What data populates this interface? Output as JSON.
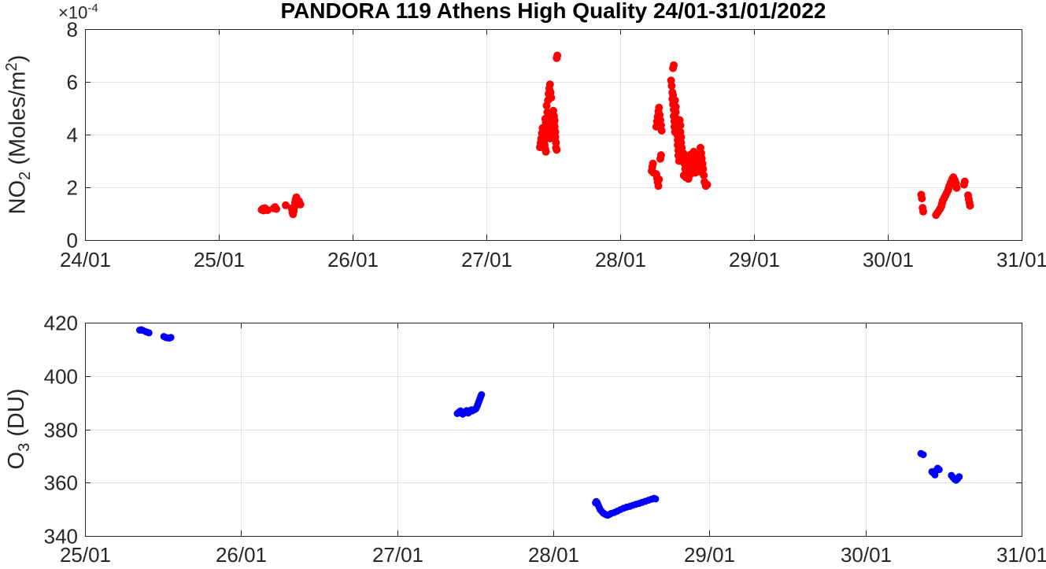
{
  "figure": {
    "title": "PANDORA 119 Athens High Quality 24/01-31/01/2022",
    "background_color": "#ffffff",
    "axis_color": "#262626",
    "grid_color": "#e0e0e0"
  },
  "chart_data": [
    {
      "type": "scatter",
      "id": "no2",
      "ylabel": {
        "base": "NO",
        "sub": "2",
        "mid": " (Moles/m",
        "sup": "2",
        "end": ")"
      },
      "y_exponent": {
        "base": "×10",
        "sup": "-4"
      },
      "marker_color": "#ff0000",
      "x_tick_labels": [
        "24/01",
        "25/01",
        "26/01",
        "27/01",
        "28/01",
        "29/01",
        "30/01",
        "31/01"
      ],
      "x_range_days": [
        0,
        7
      ],
      "y_tick_labels": [
        "0",
        "2",
        "4",
        "6",
        "8"
      ],
      "y_ticks": [
        0,
        2,
        4,
        6,
        8
      ],
      "ylim": [
        0,
        8
      ],
      "grid": true,
      "points": [
        [
          1.32,
          1.15
        ],
        [
          1.33,
          1.19
        ],
        [
          1.335,
          1.12
        ],
        [
          1.345,
          1.21
        ],
        [
          1.355,
          1.16
        ],
        [
          1.365,
          1.13
        ],
        [
          1.41,
          1.2
        ],
        [
          1.42,
          1.25
        ],
        [
          1.43,
          1.18
        ],
        [
          1.5,
          1.32
        ],
        [
          1.545,
          1.2
        ],
        [
          1.55,
          1.05
        ],
        [
          1.555,
          0.98
        ],
        [
          1.56,
          1.1
        ],
        [
          1.565,
          1.25
        ],
        [
          1.57,
          1.42
        ],
        [
          1.575,
          1.55
        ],
        [
          1.58,
          1.62
        ],
        [
          1.585,
          1.5
        ],
        [
          1.59,
          1.4
        ],
        [
          1.6,
          1.47
        ],
        [
          1.61,
          1.35
        ],
        [
          3.4,
          3.52
        ],
        [
          3.405,
          3.68
        ],
        [
          3.41,
          3.85
        ],
        [
          3.415,
          4.05
        ],
        [
          3.42,
          4.25
        ],
        [
          3.425,
          3.95
        ],
        [
          3.43,
          3.75
        ],
        [
          3.435,
          3.6
        ],
        [
          3.44,
          3.45
        ],
        [
          3.445,
          3.35
        ],
        [
          3.44,
          4.6
        ],
        [
          3.445,
          4.45
        ],
        [
          3.45,
          4.3
        ],
        [
          3.45,
          4.1
        ],
        [
          3.455,
          3.95
        ],
        [
          3.455,
          4.5
        ],
        [
          3.46,
          4.7
        ],
        [
          3.46,
          4.35
        ],
        [
          3.465,
          4.15
        ],
        [
          3.465,
          4.55
        ],
        [
          3.47,
          4.4
        ],
        [
          3.47,
          4.0
        ],
        [
          3.475,
          4.25
        ],
        [
          3.475,
          3.85
        ],
        [
          3.48,
          4.45
        ],
        [
          3.45,
          5.1
        ],
        [
          3.455,
          4.85
        ],
        [
          3.46,
          5.3
        ],
        [
          3.465,
          5.55
        ],
        [
          3.47,
          5.75
        ],
        [
          3.475,
          5.9
        ],
        [
          3.48,
          5.6
        ],
        [
          3.485,
          5.4
        ],
        [
          3.5,
          4.9
        ],
        [
          3.505,
          4.7
        ],
        [
          3.505,
          4.45
        ],
        [
          3.51,
          4.55
        ],
        [
          3.51,
          4.3
        ],
        [
          3.515,
          4.1
        ],
        [
          3.515,
          3.9
        ],
        [
          3.52,
          3.7
        ],
        [
          3.52,
          3.5
        ],
        [
          3.525,
          3.42
        ],
        [
          3.525,
          6.9
        ],
        [
          3.53,
          7.0
        ],
        [
          4.235,
          2.62
        ],
        [
          4.24,
          2.78
        ],
        [
          4.245,
          2.9
        ],
        [
          4.25,
          2.55
        ],
        [
          4.27,
          2.5
        ],
        [
          4.275,
          2.35
        ],
        [
          4.28,
          2.2
        ],
        [
          4.285,
          2.05
        ],
        [
          4.29,
          2.3
        ],
        [
          4.27,
          4.3
        ],
        [
          4.275,
          4.5
        ],
        [
          4.28,
          4.68
        ],
        [
          4.285,
          4.88
        ],
        [
          4.29,
          5.02
        ],
        [
          4.295,
          4.75
        ],
        [
          4.3,
          4.55
        ],
        [
          4.305,
          4.35
        ],
        [
          4.31,
          4.15
        ],
        [
          4.3,
          3.08
        ],
        [
          4.305,
          3.22
        ],
        [
          4.395,
          6.52
        ],
        [
          4.4,
          6.63
        ],
        [
          4.38,
          6.05
        ],
        [
          4.385,
          5.85
        ],
        [
          4.39,
          5.6
        ],
        [
          4.39,
          5.35
        ],
        [
          4.395,
          5.5
        ],
        [
          4.395,
          5.15
        ],
        [
          4.4,
          4.95
        ],
        [
          4.4,
          4.7
        ],
        [
          4.405,
          4.5
        ],
        [
          4.405,
          4.3
        ],
        [
          4.41,
          4.1
        ],
        [
          4.41,
          5.3
        ],
        [
          4.415,
          5.05
        ],
        [
          4.415,
          4.85
        ],
        [
          4.42,
          4.6
        ],
        [
          4.42,
          4.4
        ],
        [
          4.425,
          4.2
        ],
        [
          4.425,
          4.0
        ],
        [
          4.43,
          3.8
        ],
        [
          4.43,
          3.6
        ],
        [
          4.435,
          3.4
        ],
        [
          4.435,
          3.2
        ],
        [
          4.44,
          3.0
        ],
        [
          4.445,
          4.55
        ],
        [
          4.45,
          4.35
        ],
        [
          4.45,
          4.1
        ],
        [
          4.455,
          3.9
        ],
        [
          4.455,
          3.7
        ],
        [
          4.46,
          3.5
        ],
        [
          4.46,
          3.3
        ],
        [
          4.465,
          3.15
        ],
        [
          4.47,
          3.3
        ],
        [
          4.475,
          3.1
        ],
        [
          4.48,
          2.9
        ],
        [
          4.485,
          2.7
        ],
        [
          4.49,
          3.2
        ],
        [
          4.495,
          3.0
        ],
        [
          4.5,
          2.8
        ],
        [
          4.505,
          2.6
        ],
        [
          4.51,
          3.1
        ],
        [
          4.515,
          2.9
        ],
        [
          4.52,
          2.7
        ],
        [
          4.525,
          2.5
        ],
        [
          4.53,
          3.0
        ],
        [
          4.535,
          2.8
        ],
        [
          4.54,
          2.6
        ],
        [
          4.545,
          3.15
        ],
        [
          4.55,
          2.95
        ],
        [
          4.555,
          2.75
        ],
        [
          4.56,
          2.55
        ],
        [
          4.565,
          3.05
        ],
        [
          4.57,
          2.85
        ],
        [
          4.475,
          2.45
        ],
        [
          4.49,
          2.38
        ],
        [
          4.51,
          2.32
        ],
        [
          4.53,
          3.25
        ],
        [
          4.55,
          3.35
        ],
        [
          4.57,
          3.2
        ],
        [
          4.58,
          3.0
        ],
        [
          4.585,
          2.8
        ],
        [
          4.59,
          2.6
        ],
        [
          4.6,
          3.5
        ],
        [
          4.605,
          3.3
        ],
        [
          4.61,
          3.1
        ],
        [
          4.615,
          2.9
        ],
        [
          4.62,
          2.7
        ],
        [
          4.625,
          2.45
        ],
        [
          4.63,
          2.2
        ],
        [
          4.64,
          2.05
        ],
        [
          4.65,
          2.1
        ],
        [
          6.25,
          1.72
        ],
        [
          6.255,
          1.58
        ],
        [
          6.26,
          1.22
        ],
        [
          6.265,
          1.08
        ],
        [
          6.36,
          0.95
        ],
        [
          6.37,
          1.02
        ],
        [
          6.38,
          1.1
        ],
        [
          6.39,
          1.18
        ],
        [
          6.4,
          1.28
        ],
        [
          6.405,
          1.38
        ],
        [
          6.41,
          1.48
        ],
        [
          6.42,
          1.58
        ],
        [
          6.43,
          1.68
        ],
        [
          6.44,
          1.78
        ],
        [
          6.45,
          1.88
        ],
        [
          6.455,
          1.96
        ],
        [
          6.46,
          2.05
        ],
        [
          6.47,
          2.18
        ],
        [
          6.48,
          2.3
        ],
        [
          6.49,
          2.38
        ],
        [
          6.5,
          2.28
        ],
        [
          6.51,
          2.15
        ],
        [
          6.515,
          1.98
        ],
        [
          6.57,
          2.1
        ],
        [
          6.575,
          2.22
        ],
        [
          6.6,
          1.7
        ],
        [
          6.605,
          1.55
        ],
        [
          6.61,
          1.42
        ],
        [
          6.615,
          1.3
        ]
      ]
    },
    {
      "type": "scatter",
      "id": "o3",
      "ylabel": {
        "base": "O",
        "sub": "3",
        "mid": " (DU)",
        "sup": "",
        "end": ""
      },
      "marker_color": "#0000ff",
      "x_tick_labels": [
        "25/01",
        "26/01",
        "27/01",
        "28/01",
        "29/01",
        "30/01",
        "31/01"
      ],
      "x_range_days": [
        0,
        6
      ],
      "y_tick_labels": [
        "340",
        "360",
        "380",
        "400",
        "420"
      ],
      "y_ticks": [
        340,
        360,
        380,
        400,
        420
      ],
      "ylim": [
        340,
        420
      ],
      "grid": true,
      "points": [
        [
          0.35,
          417.2
        ],
        [
          0.36,
          417.35
        ],
        [
          0.37,
          417.1
        ],
        [
          0.39,
          416.6
        ],
        [
          0.4,
          416.4
        ],
        [
          0.41,
          416.2
        ],
        [
          0.505,
          414.8
        ],
        [
          0.515,
          414.5
        ],
        [
          0.525,
          414.3
        ],
        [
          0.54,
          414.2
        ],
        [
          0.55,
          414.45
        ],
        [
          2.385,
          385.9
        ],
        [
          2.39,
          386.2
        ],
        [
          2.4,
          386.6
        ],
        [
          2.405,
          386.9
        ],
        [
          2.41,
          386.4
        ],
        [
          2.415,
          385.9
        ],
        [
          2.42,
          385.7
        ],
        [
          2.425,
          386.0
        ],
        [
          2.43,
          386.3
        ],
        [
          2.44,
          386.7
        ],
        [
          2.445,
          387.0
        ],
        [
          2.45,
          386.5
        ],
        [
          2.455,
          386.1
        ],
        [
          2.46,
          386.4
        ],
        [
          2.465,
          386.8
        ],
        [
          2.47,
          387.1
        ],
        [
          2.475,
          387.3
        ],
        [
          2.48,
          386.9
        ],
        [
          2.49,
          387.2
        ],
        [
          2.5,
          387.5
        ],
        [
          2.505,
          387.8
        ],
        [
          2.51,
          388.4
        ],
        [
          2.515,
          389.1
        ],
        [
          2.52,
          389.9
        ],
        [
          2.525,
          390.7
        ],
        [
          2.53,
          391.5
        ],
        [
          2.535,
          392.3
        ],
        [
          2.54,
          393.0
        ],
        [
          3.27,
          352.4
        ],
        [
          3.275,
          352.9
        ],
        [
          3.28,
          352.6
        ],
        [
          3.285,
          352.0
        ],
        [
          3.29,
          351.3
        ],
        [
          3.295,
          350.6
        ],
        [
          3.3,
          349.9
        ],
        [
          3.31,
          349.2
        ],
        [
          3.32,
          348.6
        ],
        [
          3.33,
          348.2
        ],
        [
          3.34,
          347.9
        ],
        [
          3.35,
          347.8
        ],
        [
          3.36,
          348.1
        ],
        [
          3.37,
          348.4
        ],
        [
          3.39,
          348.8
        ],
        [
          3.41,
          349.3
        ],
        [
          3.43,
          349.9
        ],
        [
          3.45,
          350.4
        ],
        [
          3.47,
          350.8
        ],
        [
          3.49,
          351.1
        ],
        [
          3.51,
          351.5
        ],
        [
          3.53,
          351.9
        ],
        [
          3.55,
          352.2
        ],
        [
          3.57,
          352.6
        ],
        [
          3.59,
          353.0
        ],
        [
          3.61,
          353.4
        ],
        [
          3.63,
          353.8
        ],
        [
          3.645,
          354.1
        ],
        [
          3.655,
          353.9
        ],
        [
          5.355,
          370.9
        ],
        [
          5.37,
          370.5
        ],
        [
          5.425,
          364.1
        ],
        [
          5.435,
          363.6
        ],
        [
          5.445,
          362.9
        ],
        [
          5.452,
          364.6
        ],
        [
          5.462,
          365.4
        ],
        [
          5.472,
          364.9
        ],
        [
          5.55,
          362.7
        ],
        [
          5.56,
          362.0
        ],
        [
          5.57,
          361.3
        ],
        [
          5.58,
          360.9
        ],
        [
          5.59,
          361.4
        ],
        [
          5.6,
          362.2
        ]
      ]
    }
  ]
}
